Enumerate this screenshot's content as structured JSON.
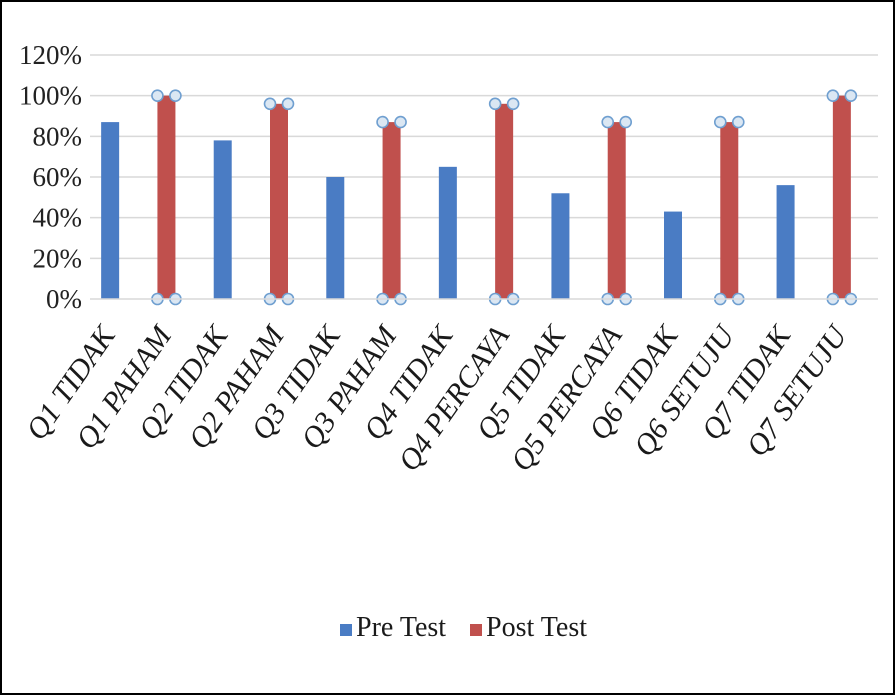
{
  "chart_data": {
    "type": "bar",
    "categories": [
      "Q1 TIDAK",
      "Q1 PAHAM",
      "Q2 TIDAK",
      "Q2 PAHAM",
      "Q3 TIDAK",
      "Q3 PAHAM",
      "Q4 TIDAK",
      "Q4 PERCAYA",
      "Q5 TIDAK",
      "Q5 PERCAYA",
      "Q6 TIDAK",
      "Q6 SETUJU",
      "Q7 TIDAK",
      "Q7 SETUJU"
    ],
    "series": [
      {
        "name": "Pre Test",
        "color": "#4a7cc4",
        "values": [
          87,
          0,
          78,
          0,
          60,
          0,
          65,
          0,
          52,
          0,
          43,
          0,
          56,
          0
        ]
      },
      {
        "name": "Post Test",
        "color": "#c0504d",
        "values": [
          0,
          100,
          0,
          96,
          0,
          87,
          0,
          96,
          0,
          87,
          0,
          87,
          0,
          100
        ]
      }
    ],
    "y_ticks": [
      "0%",
      "20%",
      "40%",
      "60%",
      "80%",
      "100%",
      "120%"
    ],
    "ylim": [
      0,
      120
    ],
    "title": "",
    "xlabel": "",
    "ylabel": "",
    "grid": true,
    "legend_position": "bottom"
  }
}
